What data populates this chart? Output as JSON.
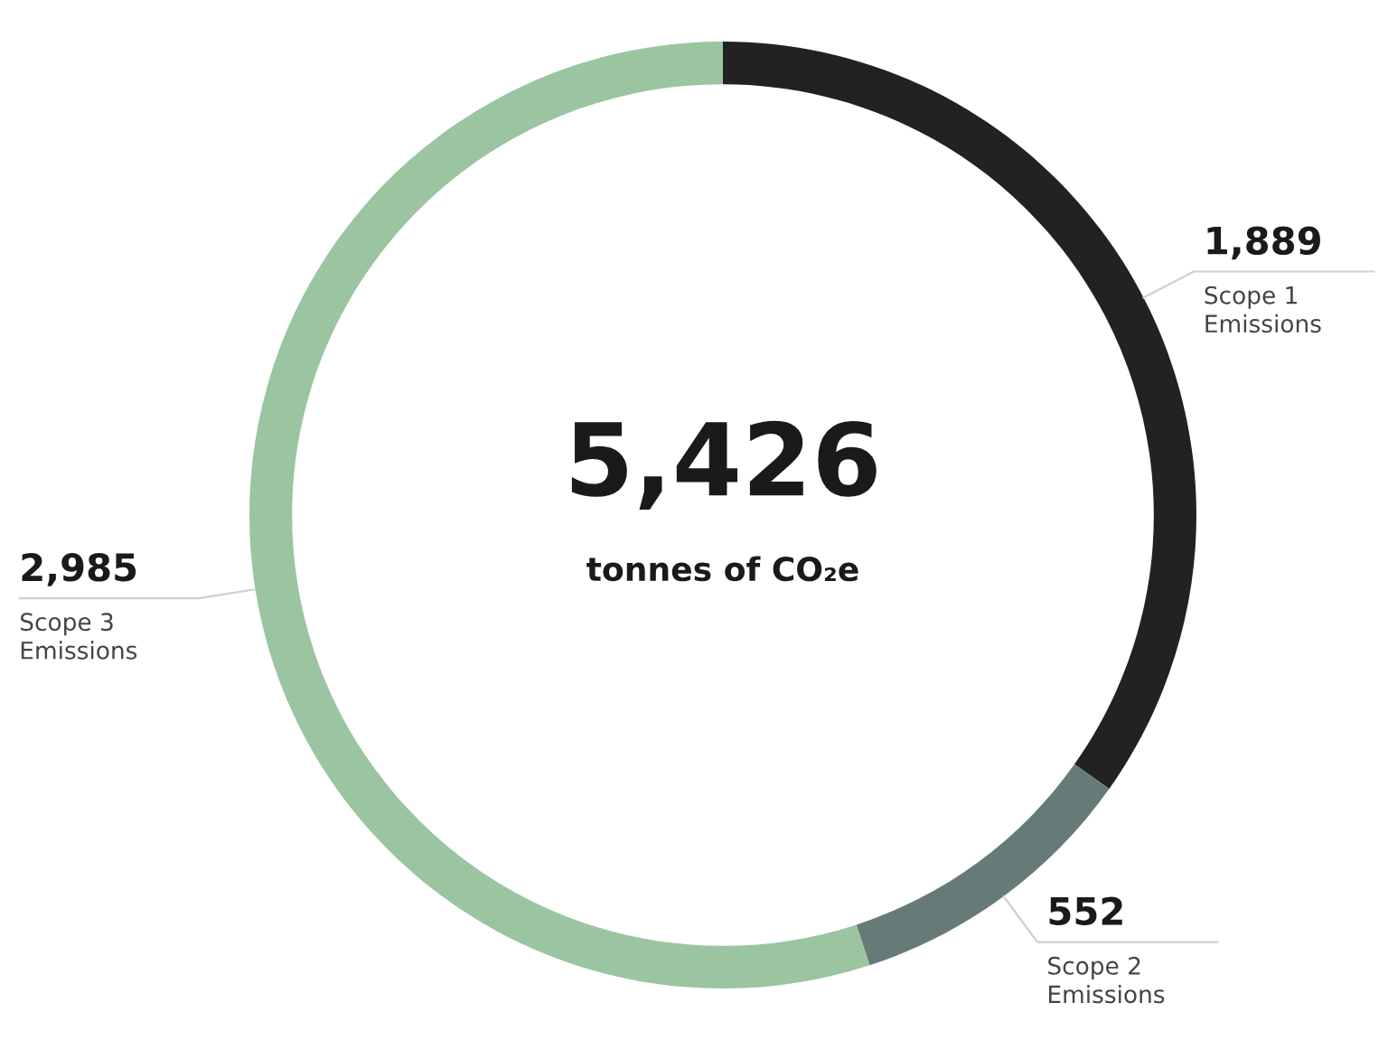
{
  "chart_data": {
    "type": "donut",
    "categories": [
      "Scope 1\nEmissions",
      "Scope 2\nEmissions",
      "Scope 3\nEmissions"
    ],
    "values": [
      1889,
      552,
      2985
    ],
    "colors": [
      "#222222",
      "#667b77",
      "#9ac5a0"
    ],
    "value_labels": [
      "1,889",
      "552",
      "2,985"
    ],
    "annotations": [
      "5,426",
      "tonnes of CO₂e"
    ]
  }
}
